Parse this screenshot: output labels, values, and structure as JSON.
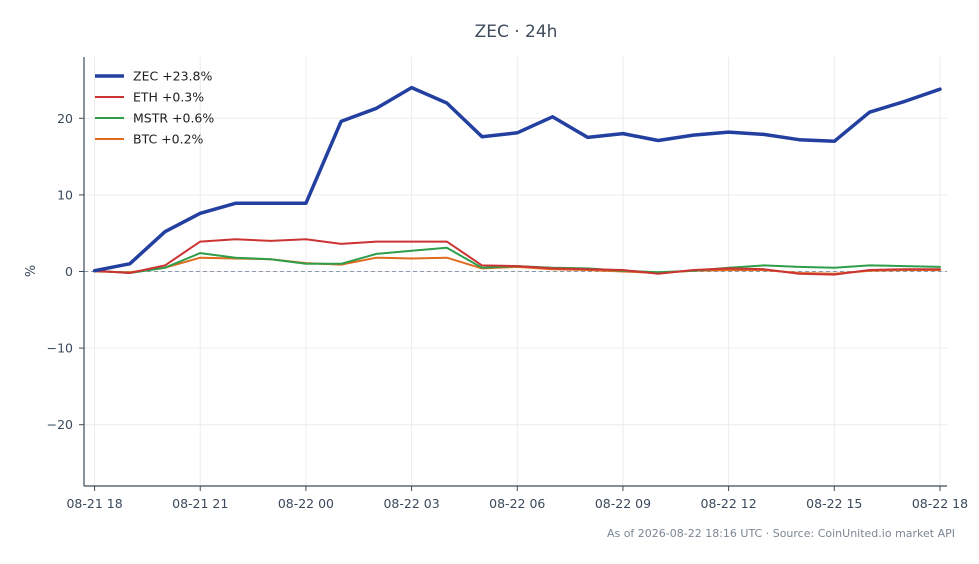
{
  "chart_data": {
    "type": "line",
    "title": "ZEC · 24h",
    "xlabel": "",
    "ylabel": "%",
    "ylim": [
      -28,
      28
    ],
    "yticks": [
      -20,
      -10,
      0,
      10,
      20
    ],
    "ytick_labels": [
      "−20",
      "−10",
      "0",
      "10",
      "20"
    ],
    "xlim": [
      -0.3,
      24.2
    ],
    "xticks": [
      0,
      3,
      6,
      9,
      12,
      15,
      18,
      21,
      24
    ],
    "xtick_labels": [
      "08-21 18",
      "08-21 21",
      "08-22 00",
      "08-22 03",
      "08-22 06",
      "08-22 09",
      "08-22 12",
      "08-22 15",
      "08-22 18"
    ],
    "x": [
      0,
      1,
      2,
      3,
      4,
      5,
      6,
      7,
      8,
      9,
      10,
      11,
      12,
      13,
      14,
      15,
      16,
      17,
      18,
      19,
      20,
      21,
      22,
      23,
      24
    ],
    "grid": true,
    "zero_line": true,
    "legend_position": "top-left",
    "series": [
      {
        "name": "ZEC +23.8%",
        "color": "#2340a0",
        "width": 3.5,
        "values": [
          0.1,
          1.0,
          5.2,
          7.6,
          8.9,
          8.9,
          8.9,
          19.6,
          21.3,
          24.0,
          22.0,
          17.6,
          18.1,
          20.2,
          17.5,
          18.0,
          17.1,
          17.8,
          18.2,
          17.9,
          17.2,
          17.0,
          20.8,
          22.2,
          23.8
        ]
      },
      {
        "name": "ETH +0.3%",
        "color": "#cc3333",
        "width": 2,
        "values": [
          0.1,
          -0.2,
          0.8,
          3.9,
          4.2,
          4.0,
          4.2,
          3.6,
          3.9,
          3.9,
          3.9,
          0.8,
          0.7,
          0.4,
          0.3,
          0.2,
          -0.3,
          0.2,
          0.4,
          0.3,
          -0.3,
          -0.4,
          0.2,
          0.3,
          0.3
        ]
      },
      {
        "name": "MSTR +0.6%",
        "color": "#2e9e4a",
        "width": 2,
        "values": [
          0.1,
          -0.2,
          0.5,
          2.4,
          1.8,
          1.6,
          1.0,
          1.0,
          2.3,
          2.7,
          3.1,
          0.5,
          0.7,
          0.5,
          0.4,
          0.1,
          -0.1,
          0.1,
          0.5,
          0.8,
          0.6,
          0.5,
          0.8,
          0.7,
          0.6
        ]
      },
      {
        "name": "BTC +0.2%",
        "color": "#e06a1e",
        "width": 2,
        "values": [
          0.0,
          -0.1,
          0.5,
          1.8,
          1.7,
          1.6,
          1.1,
          0.9,
          1.8,
          1.7,
          1.8,
          0.4,
          0.6,
          0.3,
          0.2,
          0.0,
          -0.2,
          0.1,
          0.2,
          0.2,
          -0.2,
          -0.3,
          0.1,
          0.2,
          0.2
        ]
      }
    ],
    "footer": "As of 2026-08-22 18:16 UTC · Source: CoinUnited.io market API"
  }
}
